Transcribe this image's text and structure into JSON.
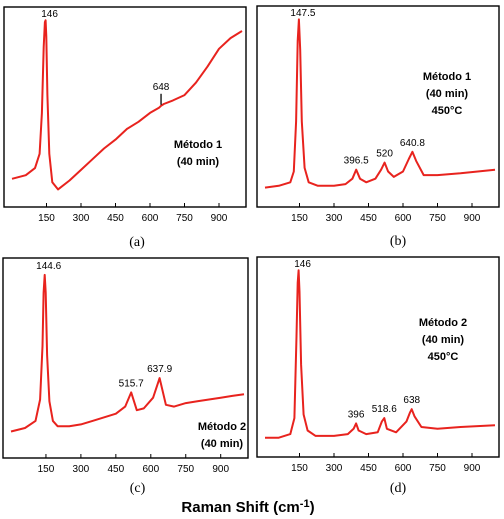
{
  "xlabel": "Raman Shift (cm",
  "xlabel_sup": "-1",
  "xlabel_close": ")",
  "chart_data": [
    {
      "type": "line",
      "caption": "(a)",
      "annotation": [
        "Método 1",
        "(40 min)"
      ],
      "xlim": [
        0,
        1000
      ],
      "xticks": [
        "150",
        "300",
        "450",
        "600",
        "750",
        "900"
      ],
      "grid": false,
      "legend": "none",
      "color": "#e8231e",
      "peak_labels": [
        {
          "x": 146,
          "text": "146"
        },
        {
          "x": 648,
          "text": "648"
        }
      ],
      "x": [
        0,
        60,
        100,
        120,
        130,
        138,
        143,
        146,
        149,
        154,
        162,
        175,
        200,
        250,
        300,
        350,
        400,
        450,
        500,
        550,
        600,
        640,
        648,
        660,
        700,
        750,
        800,
        850,
        900,
        950,
        1000
      ],
      "y": [
        8,
        10,
        14,
        22,
        45,
        82,
        96,
        97,
        88,
        55,
        22,
        6,
        2,
        7,
        13,
        19,
        25,
        30,
        36,
        40,
        45,
        48,
        49,
        50,
        52,
        55,
        62,
        71,
        81,
        87,
        91
      ]
    },
    {
      "type": "line",
      "caption": "(b)",
      "annotation": [
        "Método 1",
        "(40 min)",
        "450°C"
      ],
      "xlim": [
        0,
        1000
      ],
      "xticks": [
        "150",
        "300",
        "450",
        "600",
        "750",
        "900"
      ],
      "grid": false,
      "legend": "none",
      "color": "#e8231e",
      "peak_labels": [
        {
          "x": 147.5,
          "text": "147.5"
        },
        {
          "x": 396.5,
          "text": "396.5"
        },
        {
          "x": 520,
          "text": "520"
        },
        {
          "x": 640.8,
          "text": "640.8"
        }
      ],
      "x": [
        0,
        60,
        110,
        125,
        135,
        142,
        147.5,
        153,
        160,
        172,
        190,
        230,
        300,
        350,
        380,
        396.5,
        413,
        440,
        480,
        505,
        520,
        535,
        560,
        600,
        625,
        640.8,
        657,
        690,
        750,
        850,
        1000
      ],
      "y": [
        3,
        4,
        6,
        12,
        40,
        85,
        97,
        80,
        40,
        14,
        6,
        4,
        4,
        5,
        8,
        13,
        8,
        6,
        8,
        13,
        17,
        12,
        9,
        12,
        19,
        23,
        18,
        10,
        10,
        11,
        13
      ]
    },
    {
      "type": "line",
      "caption": "(c)",
      "annotation": [
        "Método 2",
        "(40 min)"
      ],
      "xlim": [
        0,
        1000
      ],
      "xticks": [
        "150",
        "300",
        "450",
        "600",
        "750",
        "900"
      ],
      "grid": false,
      "legend": "none",
      "color": "#e8231e",
      "peak_labels": [
        {
          "x": 144.6,
          "text": "144.6"
        },
        {
          "x": 515.7,
          "text": "515.7"
        },
        {
          "x": 637.9,
          "text": "637.9"
        }
      ],
      "x": [
        0,
        60,
        105,
        125,
        135,
        140,
        144.6,
        149,
        155,
        165,
        180,
        200,
        250,
        300,
        350,
        400,
        450,
        490,
        515.7,
        540,
        570,
        610,
        637.9,
        665,
        700,
        750,
        800,
        850,
        900,
        950,
        1000
      ],
      "y": [
        7,
        9,
        13,
        25,
        55,
        85,
        95,
        85,
        50,
        24,
        13,
        10,
        10,
        11,
        13,
        15,
        17,
        21,
        29,
        19,
        20,
        26,
        37,
        22,
        21,
        23,
        24,
        25,
        26,
        27,
        28
      ]
    },
    {
      "type": "line",
      "caption": "(d)",
      "annotation": [
        "Método 2",
        "(40 min)",
        "450°C"
      ],
      "xlim": [
        0,
        1000
      ],
      "xticks": [
        "150",
        "300",
        "450",
        "600",
        "750",
        "900"
      ],
      "grid": false,
      "legend": "none",
      "color": "#e8231e",
      "peak_labels": [
        {
          "x": 146,
          "text": "146"
        },
        {
          "x": 396,
          "text": "396"
        },
        {
          "x": 518.6,
          "text": "518.6"
        },
        {
          "x": 638,
          "text": "638"
        }
      ],
      "x": [
        0,
        60,
        110,
        128,
        137,
        142,
        146,
        150,
        157,
        168,
        185,
        220,
        300,
        360,
        385,
        396,
        407,
        440,
        490,
        508,
        518.6,
        530,
        570,
        615,
        630,
        638,
        650,
        680,
        750,
        850,
        1000
      ],
      "y": [
        3,
        3,
        5,
        14,
        60,
        90,
        97,
        85,
        44,
        16,
        7,
        4,
        4,
        5,
        8,
        11,
        7,
        5,
        6,
        12,
        14,
        8,
        6,
        12,
        17,
        19,
        15,
        9,
        8,
        9,
        10
      ]
    }
  ]
}
